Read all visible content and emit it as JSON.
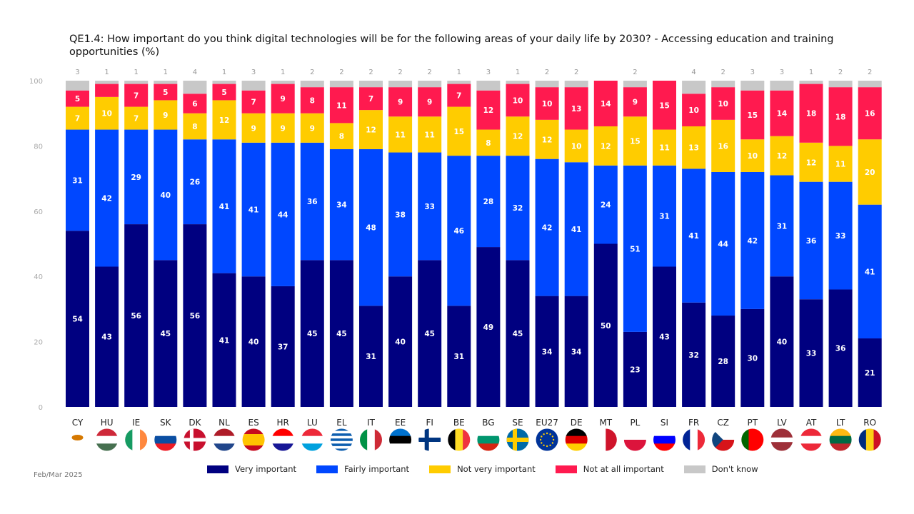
{
  "title": "QE1.4: How important do you think digital technologies will be for the following areas of your daily life by 2030? - Accessing education and training opportunities (%)",
  "footer": "Feb/Mar 2025",
  "chart_data": {
    "type": "bar",
    "stacked": true,
    "ylim": [
      0,
      100
    ],
    "yticks": [
      0,
      20,
      40,
      60,
      80,
      100
    ],
    "grid": false,
    "legend_position": "bottom",
    "categories": [
      "CY",
      "HU",
      "IE",
      "SK",
      "DK",
      "NL",
      "ES",
      "HR",
      "LU",
      "EL",
      "IT",
      "EE",
      "FI",
      "BE",
      "BG",
      "SE",
      "EU27",
      "DE",
      "MT",
      "PL",
      "SI",
      "FR",
      "CZ",
      "PT",
      "LV",
      "AT",
      "LT",
      "RO"
    ],
    "series": [
      {
        "name": "Very important",
        "color": "#000080",
        "values": [
          54,
          43,
          56,
          45,
          56,
          41,
          40,
          37,
          45,
          45,
          31,
          40,
          45,
          31,
          49,
          45,
          34,
          34,
          50,
          23,
          43,
          32,
          28,
          30,
          40,
          33,
          36,
          21
        ]
      },
      {
        "name": "Fairly important",
        "color": "#0047ff",
        "values": [
          31,
          42,
          29,
          40,
          26,
          41,
          41,
          44,
          36,
          34,
          48,
          38,
          33,
          46,
          28,
          32,
          42,
          41,
          24,
          51,
          31,
          41,
          44,
          42,
          31,
          36,
          33,
          41
        ]
      },
      {
        "name": "Not very important",
        "color": "#ffcc00",
        "values": [
          7,
          10,
          7,
          9,
          8,
          12,
          9,
          9,
          9,
          8,
          12,
          11,
          11,
          15,
          8,
          12,
          12,
          10,
          12,
          15,
          11,
          13,
          16,
          10,
          12,
          12,
          11,
          20
        ]
      },
      {
        "name": "Not at all important",
        "color": "#ff1a4f",
        "values": [
          5,
          4,
          7,
          5,
          6,
          5,
          7,
          9,
          8,
          11,
          7,
          9,
          9,
          7,
          12,
          10,
          10,
          13,
          14,
          9,
          15,
          10,
          10,
          15,
          14,
          18,
          18,
          16
        ]
      },
      {
        "name": "Don't know",
        "color": "#c8c8c8",
        "values": [
          3,
          1,
          1,
          1,
          4,
          1,
          3,
          1,
          2,
          2,
          2,
          2,
          2,
          1,
          3,
          1,
          2,
          2,
          null,
          2,
          null,
          4,
          2,
          3,
          3,
          1,
          2,
          2
        ]
      }
    ]
  }
}
